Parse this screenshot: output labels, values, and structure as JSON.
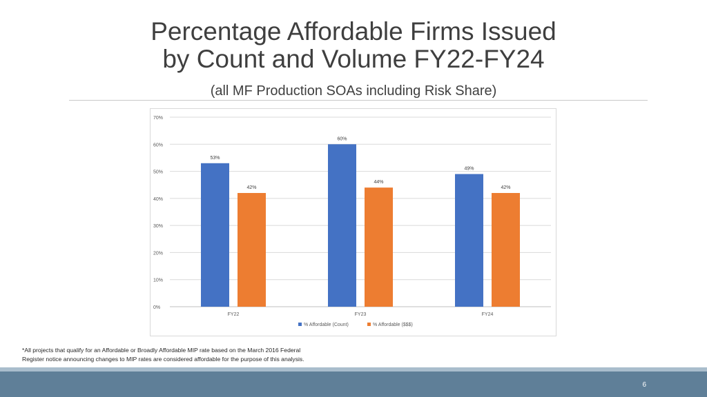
{
  "slide": {
    "title_line1": "Percentage Affordable Firms Issued",
    "title_line2": "by Count and Volume FY22-FY24",
    "subtitle": "(all MF Production SOAs including Risk Share)",
    "footnote_line1": "*All projects that qualify for an Affordable or Broadly Affordable MIP rate based on the March 2016 Federal",
    "footnote_line2": "Register notice announcing changes to MIP rates are considered affordable for the purpose of this analysis.",
    "page_number": "6"
  },
  "chart_data": {
    "type": "bar",
    "categories": [
      "FY22",
      "FY23",
      "FY24"
    ],
    "series": [
      {
        "name": "% Affordable (Count)",
        "values": [
          53,
          60,
          49
        ],
        "labels": [
          "53%",
          "60%",
          "49%"
        ],
        "color": "#4472c4"
      },
      {
        "name": "% Affordable ($$$)",
        "values": [
          42,
          44,
          42
        ],
        "labels": [
          "42%",
          "44%",
          "42%"
        ],
        "color": "#ed7d31"
      }
    ],
    "ylim": [
      0,
      70
    ],
    "yticks": [
      0,
      10,
      20,
      30,
      40,
      50,
      60,
      70
    ],
    "ytick_labels": [
      "0%",
      "10%",
      "20%",
      "30%",
      "40%",
      "50%",
      "60%",
      "70%"
    ],
    "grid": true,
    "legend": "bottom",
    "xlabel": "",
    "ylabel": ""
  }
}
